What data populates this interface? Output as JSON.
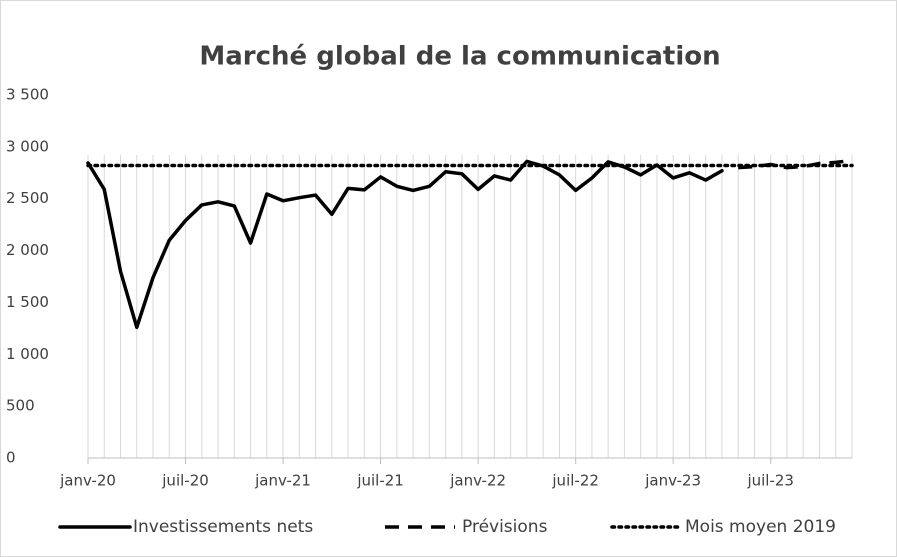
{
  "chart_data": {
    "type": "line",
    "title": "Marché global de la communication",
    "categories": [
      "janv-20",
      null,
      null,
      null,
      null,
      null,
      "juil-20",
      null,
      null,
      null,
      null,
      null,
      "janv-21",
      null,
      null,
      null,
      null,
      null,
      "juil-21",
      null,
      null,
      null,
      null,
      null,
      "janv-22",
      null,
      null,
      null,
      null,
      null,
      "juil-22",
      null,
      null,
      null,
      null,
      null,
      "janv-23",
      null,
      null,
      null,
      null,
      null,
      "juil-23",
      null,
      null,
      null,
      null,
      null
    ],
    "series": [
      {
        "name": "Investissements nets",
        "color": "#000000",
        "dash": "solid",
        "values": [
          2845,
          2590,
          1800,
          1260,
          1740,
          2100,
          2290,
          2440,
          2470,
          2430,
          2073,
          2545,
          2480,
          2510,
          2535,
          2350,
          2600,
          2585,
          2710,
          2620,
          2580,
          2620,
          2760,
          2740,
          2590,
          2720,
          2680,
          2860,
          2815,
          2730,
          2580,
          2700,
          2855,
          2805,
          2730,
          2825,
          2700,
          2750,
          2680,
          2770,
          null,
          null,
          null,
          null,
          null,
          null,
          null,
          null
        ]
      },
      {
        "name": "Prévisions",
        "color": "#000000",
        "dash": "dashed",
        "values": [
          null,
          null,
          null,
          null,
          null,
          null,
          null,
          null,
          null,
          null,
          null,
          null,
          null,
          null,
          null,
          null,
          null,
          null,
          null,
          null,
          null,
          null,
          null,
          null,
          null,
          null,
          null,
          null,
          null,
          null,
          null,
          null,
          null,
          null,
          null,
          null,
          null,
          null,
          null,
          null,
          2800,
          2810,
          2830,
          2800,
          2810,
          2840,
          2850,
          2870
        ]
      },
      {
        "name": "Mois moyen 2019",
        "color": "#000000",
        "dash": "dotted",
        "values": [
          2820,
          2820,
          2820,
          2820,
          2820,
          2820,
          2820,
          2820,
          2820,
          2820,
          2820,
          2820,
          2820,
          2820,
          2820,
          2820,
          2820,
          2820,
          2820,
          2820,
          2820,
          2820,
          2820,
          2820,
          2820,
          2820,
          2820,
          2820,
          2820,
          2820,
          2820,
          2820,
          2820,
          2820,
          2820,
          2820,
          2820,
          2820,
          2820,
          2820,
          2820,
          2820,
          2820,
          2820,
          2820,
          2820,
          2820,
          2820
        ]
      }
    ],
    "ylim": [
      0,
      3500
    ],
    "yticks": [
      0,
      500,
      {
        "value": 1000,
        "label": "1 000"
      },
      {
        "value": 1500,
        "label": "1 500"
      },
      {
        "value": 2000,
        "label": "2 000"
      },
      {
        "value": 2500,
        "label": "2 500"
      },
      {
        "value": 3000,
        "label": "3 000"
      },
      {
        "value": 3500,
        "label": "3 500"
      }
    ],
    "xgrid": true,
    "legend": "bottom"
  }
}
